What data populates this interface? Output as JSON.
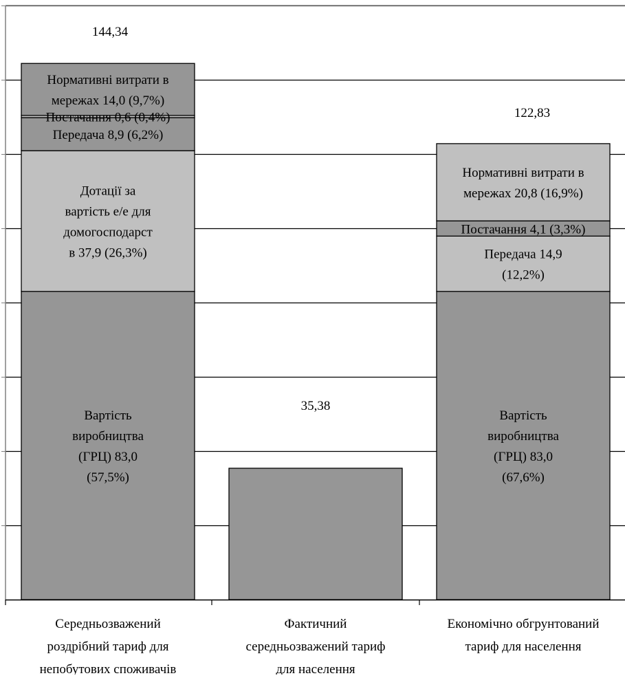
{
  "chart_data": {
    "type": "bar",
    "stacked": true,
    "categories": [
      "Середньозважений роздрібний тариф для непобутових споживачів",
      "Фактичний середньозважений тариф для населення",
      "Економічно обгрунтований тариф для населення"
    ],
    "category_label_lines": [
      [
        "Середньозважений",
        "роздрібний тариф для",
        "непобутових споживачів"
      ],
      [
        "Фактичний",
        "середньозважений тариф",
        "для населення"
      ],
      [
        "Економічно обгрунтований",
        "тариф для населення"
      ]
    ],
    "totals": [
      144.34,
      35.38,
      122.83
    ],
    "total_labels": [
      "144,34",
      "35,38",
      "122,83"
    ],
    "stacks": [
      [
        {
          "value": 83.0,
          "color": "#969696",
          "label_lines": [
            "Вартість",
            "виробництва",
            "(ГРЦ) 83,0",
            "(57,5%)"
          ]
        },
        {
          "value": 37.9,
          "color": "#c0c0c0",
          "label_lines": [
            "Дотації за",
            "вартість е/е для",
            "домогосподарст",
            "в  37,9 (26,3%)"
          ]
        },
        {
          "value": 8.9,
          "color": "#969696",
          "label_lines": [
            "Передача 8,9 (6,2%)"
          ]
        },
        {
          "value": 0.6,
          "color": "#c0c0c0",
          "label_lines": [
            "Постачання 0,6 (0,4%)"
          ]
        },
        {
          "value": 14.0,
          "color": "#969696",
          "label_lines": [
            "Нормативні витрати в",
            "мережах 14,0 (9,7%)"
          ]
        }
      ],
      [
        {
          "value": 35.38,
          "color": "#969696",
          "label_lines": []
        }
      ],
      [
        {
          "value": 83.0,
          "color": "#969696",
          "label_lines": [
            "Вартість",
            "виробництва",
            "(ГРЦ) 83,0",
            "(67,6%)"
          ]
        },
        {
          "value": 14.9,
          "color": "#c0c0c0",
          "label_lines": [
            "Передача  14,9",
            "(12,2%)"
          ]
        },
        {
          "value": 4.1,
          "color": "#969696",
          "label_lines": [
            "Постачання 4,1 (3,3%)"
          ]
        },
        {
          "value": 20.8,
          "color": "#c0c0c0",
          "label_lines": [
            "Нормативні витрати в",
            "мережах 20,8 (16,9%)"
          ]
        }
      ]
    ],
    "ylim": [
      0,
      160
    ],
    "ytick_step": 20,
    "grid": true,
    "title": "",
    "xlabel": "",
    "ylabel": ""
  }
}
